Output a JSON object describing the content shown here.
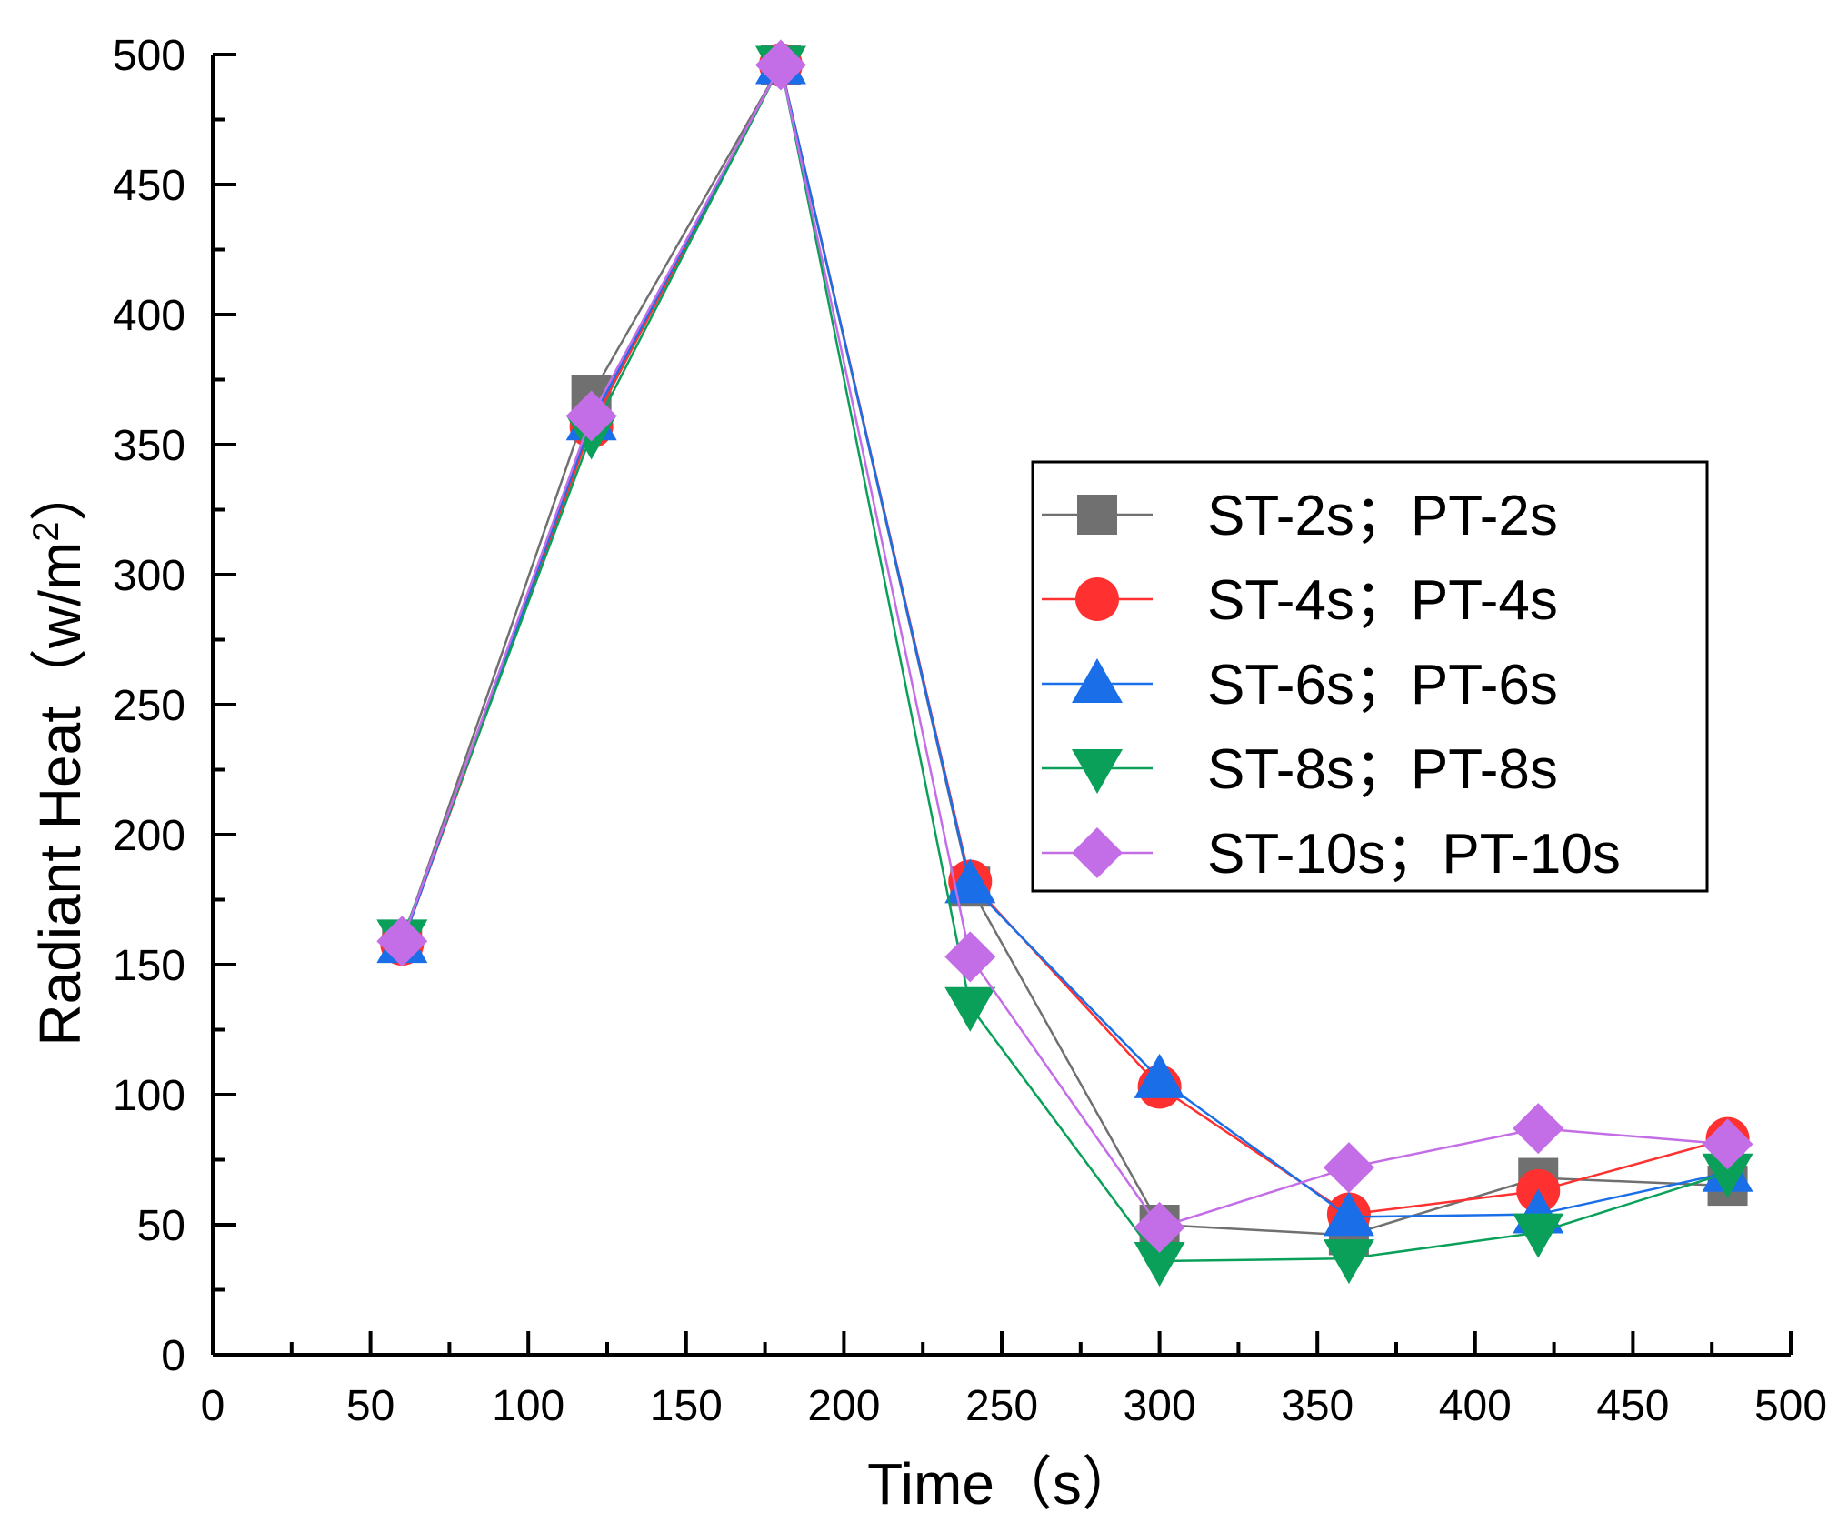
{
  "chart_data": {
    "type": "line",
    "xlabel": "Time（s）",
    "ylabel": "Radiant Heat（w/m",
    "ylabel_sup": "2",
    "ylabel_close": "）",
    "xlim": [
      0,
      500
    ],
    "ylim": [
      0,
      500
    ],
    "x_ticks": [
      0,
      50,
      100,
      150,
      200,
      250,
      300,
      350,
      400,
      450,
      500
    ],
    "y_ticks": [
      0,
      50,
      100,
      150,
      200,
      250,
      300,
      350,
      400,
      450,
      500
    ],
    "x_tick_labels": [
      "0",
      "50",
      "100",
      "150",
      "200",
      "250",
      "300",
      "350",
      "400",
      "450",
      "500"
    ],
    "y_tick_labels": [
      "0",
      "50",
      "100",
      "150",
      "200",
      "250",
      "300",
      "350",
      "400",
      "450",
      "500"
    ],
    "grid": false,
    "legend_position": "right-middle",
    "x": [
      60,
      120,
      180,
      240,
      300,
      360,
      420,
      480
    ],
    "series": [
      {
        "name": "ST-2s；PT-2s",
        "color": "#707070",
        "marker": "square",
        "values": [
          159,
          369,
          496,
          180,
          50,
          46,
          68,
          65
        ]
      },
      {
        "name": "ST-4s；PT-4s",
        "color": "#ff3030",
        "marker": "circle",
        "values": [
          158,
          357,
          496,
          182,
          103,
          54,
          63,
          83
        ]
      },
      {
        "name": "ST-6s；PT-6s",
        "color": "#1a6fe8",
        "marker": "triangle-up",
        "values": [
          158,
          359,
          496,
          181,
          106,
          53,
          54,
          70
        ]
      },
      {
        "name": "ST-8s；PT-8s",
        "color": "#0aa05a",
        "marker": "triangle-down",
        "values": [
          160,
          354,
          496,
          134,
          36,
          37,
          47,
          70
        ]
      },
      {
        "name": "ST-10s；PT-10s",
        "color": "#c36ee6",
        "marker": "diamond",
        "values": [
          159,
          361,
          496,
          153,
          49,
          72,
          87,
          81
        ]
      }
    ]
  }
}
